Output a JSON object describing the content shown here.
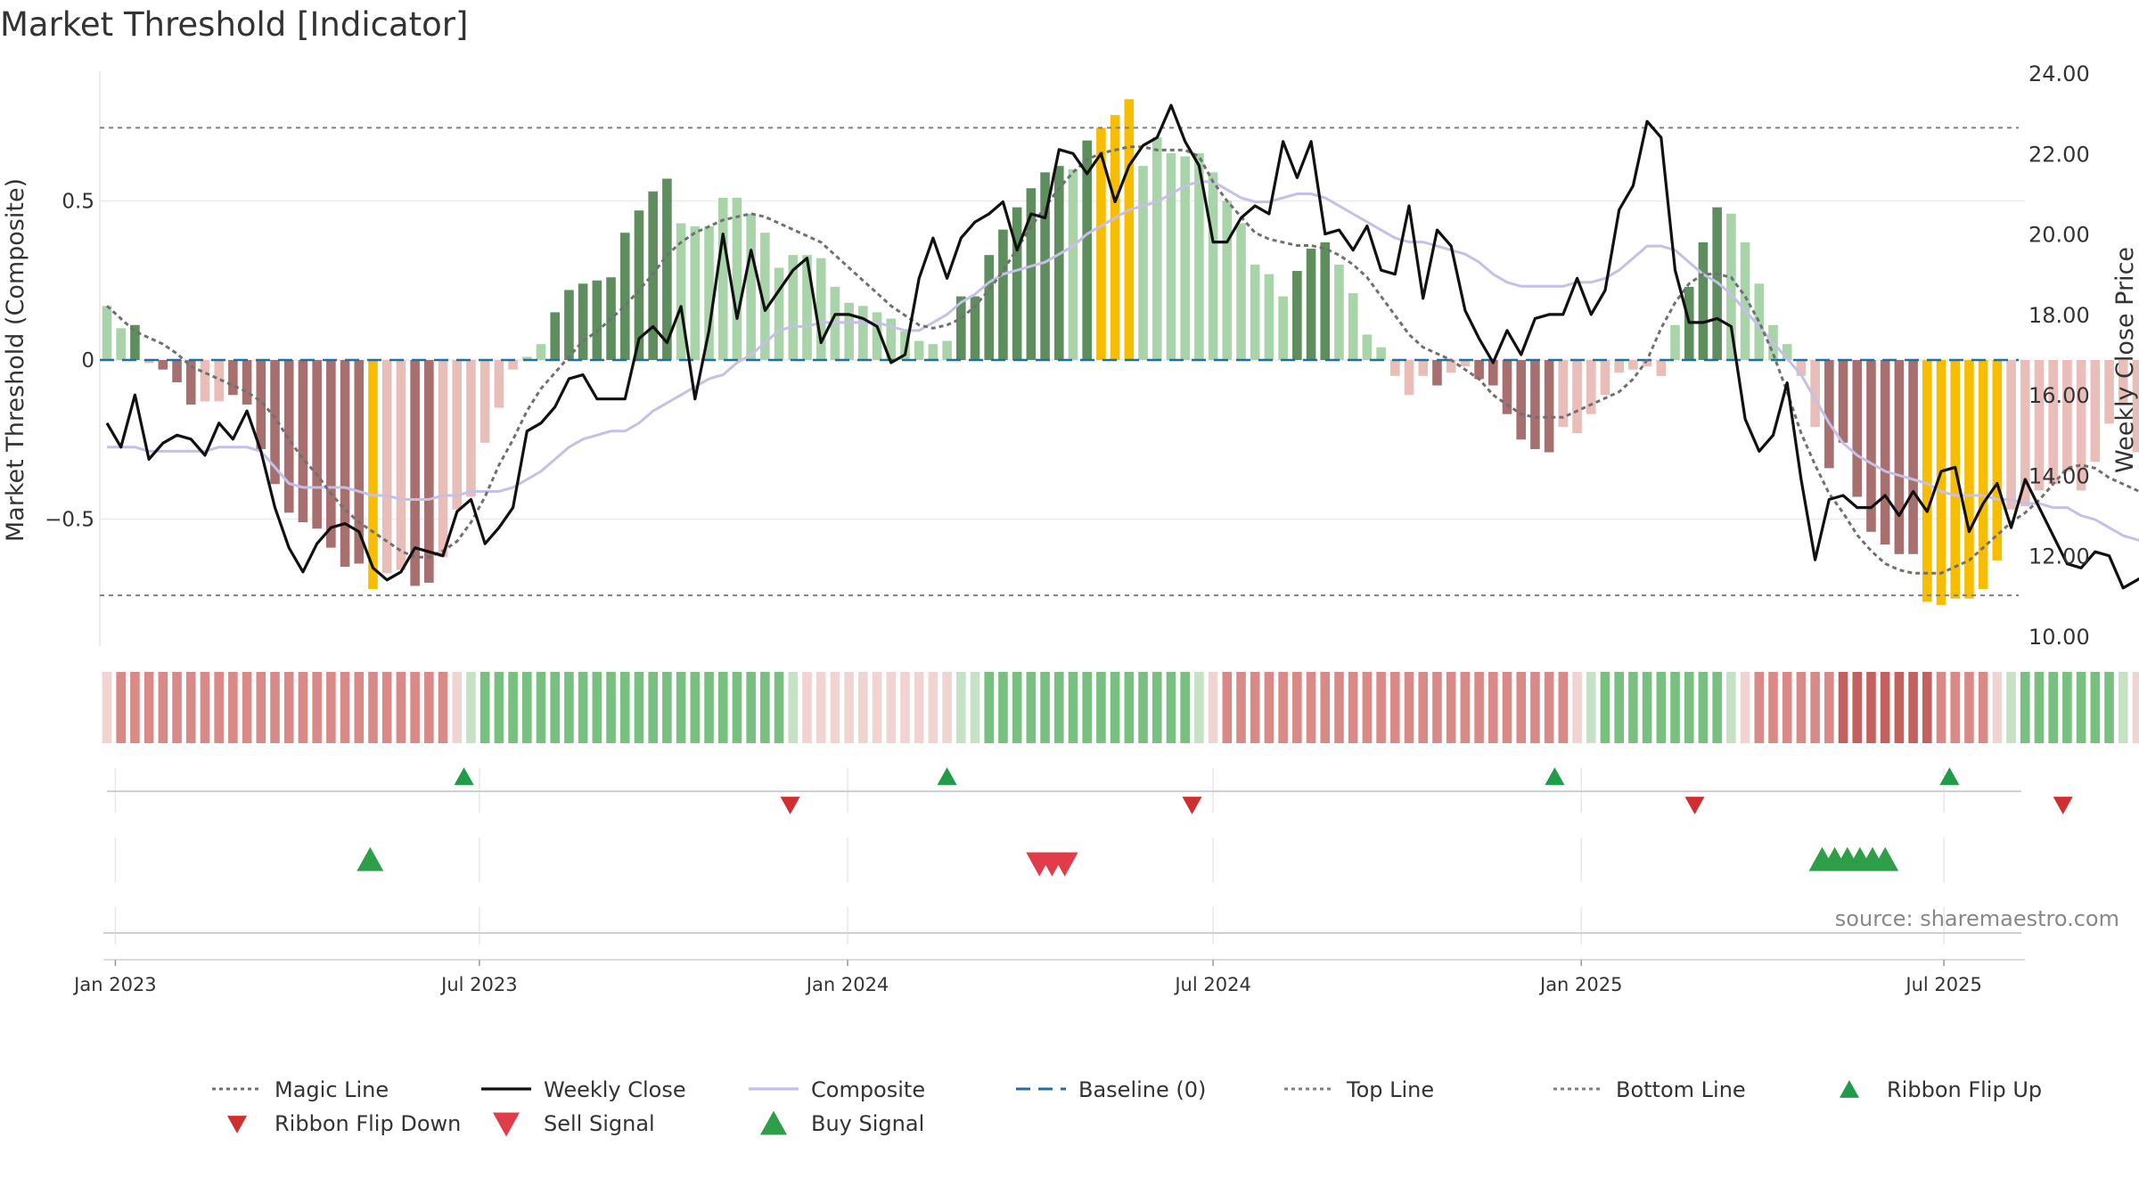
{
  "title": "Market Threshold [Indicator]",
  "source": "source: sharemaestro.com",
  "colors": {
    "strong_green": "#5e8e5e",
    "light_green": "#a9d4a9",
    "strong_red": "#a86f6f",
    "light_red": "#e9bdb8",
    "extreme": "#f7bd00",
    "magic_line": "#707070",
    "weekly_close": "#111111",
    "composite": "#c6bfe6",
    "baseline": "#1f6fa0",
    "threshold_line": "#808080",
    "flip_up": "#1e9c47",
    "flip_down": "#d02f2f",
    "sell": "#e23b4a",
    "buy": "#2e9e48"
  },
  "chart_data": {
    "type": "bar",
    "title": "Market Threshold [Indicator]",
    "ylabel": "Market Threshold (Composite)",
    "y2label": "Weekly Close Price",
    "ylim": [
      -0.9,
      0.92
    ],
    "y2lim": [
      10.0,
      24.0
    ],
    "yticks": [
      {
        "v": 0.5,
        "label": "0.5"
      },
      {
        "v": 0,
        "label": "0"
      },
      {
        "v": -0.5,
        "label": "−0.5"
      }
    ],
    "y2ticks": [
      "10.00",
      "12.00",
      "14.00",
      "16.00",
      "18.00",
      "20.00",
      "22.00",
      "24.00"
    ],
    "xticks": [
      {
        "week": 0.6,
        "label": "Jan 2023"
      },
      {
        "week": 26.6,
        "label": "Jul 2023"
      },
      {
        "week": 52.9,
        "label": "Jan 2024"
      },
      {
        "week": 79.0,
        "label": "Jul 2024"
      },
      {
        "week": 105.3,
        "label": "Jan 2025"
      },
      {
        "week": 131.2,
        "label": "Jul 2025"
      }
    ],
    "top_line": 0.73,
    "bottom_line": -0.74,
    "bars": [
      0.17,
      0.1,
      0.11,
      -0.01,
      -0.03,
      -0.07,
      -0.14,
      -0.13,
      -0.13,
      -0.11,
      -0.14,
      -0.28,
      -0.39,
      -0.48,
      -0.51,
      -0.53,
      -0.59,
      -0.65,
      -0.64,
      -0.72,
      -0.67,
      -0.66,
      -0.71,
      -0.7,
      -0.62,
      -0.47,
      -0.43,
      -0.26,
      -0.15,
      -0.03,
      0.01,
      0.05,
      0.15,
      0.22,
      0.24,
      0.25,
      0.26,
      0.4,
      0.47,
      0.53,
      0.57,
      0.43,
      0.42,
      0.42,
      0.51,
      0.51,
      0.46,
      0.4,
      0.29,
      0.33,
      0.33,
      0.32,
      0.23,
      0.18,
      0.17,
      0.15,
      0.13,
      0.09,
      0.06,
      0.05,
      0.06,
      0.2,
      0.2,
      0.33,
      0.41,
      0.48,
      0.54,
      0.59,
      0.61,
      0.6,
      0.69,
      0.73,
      0.77,
      0.82,
      0.61,
      0.7,
      0.65,
      0.64,
      0.65,
      0.59,
      0.5,
      0.43,
      0.3,
      0.27,
      0.2,
      0.28,
      0.35,
      0.37,
      0.3,
      0.21,
      0.08,
      0.04,
      -0.05,
      -0.11,
      -0.05,
      -0.08,
      -0.04,
      -0.02,
      -0.06,
      -0.08,
      -0.17,
      -0.25,
      -0.28,
      -0.29,
      -0.21,
      -0.23,
      -0.17,
      -0.11,
      -0.04,
      -0.03,
      -0.02,
      -0.05,
      0.11,
      0.23,
      0.37,
      0.48,
      0.46,
      0.37,
      0.24,
      0.11,
      0.05,
      -0.05,
      -0.21,
      -0.34,
      -0.26,
      -0.43,
      -0.54,
      -0.58,
      -0.61,
      -0.61,
      -0.76,
      -0.77,
      -0.75,
      -0.75,
      -0.72,
      -0.63,
      -0.47,
      -0.46,
      -0.41,
      -0.39,
      -0.35,
      -0.41,
      -0.32,
      -0.2,
      -0.14,
      -0.29,
      -0.29,
      -0.36,
      -0.44,
      -0.54,
      -0.55,
      -0.56,
      -0.63,
      -0.64
    ],
    "bar_colors": [
      "lg",
      "lg",
      "sg",
      "lr",
      "sr",
      "sr",
      "sr",
      "lr",
      "lr",
      "sr",
      "sr",
      "sr",
      "sr",
      "sr",
      "sr",
      "sr",
      "sr",
      "sr",
      "sr",
      "y",
      "lr",
      "lr",
      "sr",
      "sr",
      "lr",
      "lr",
      "lr",
      "lr",
      "lr",
      "lr",
      "lg",
      "lg",
      "sg",
      "sg",
      "sg",
      "sg",
      "sg",
      "sg",
      "sg",
      "sg",
      "sg",
      "lg",
      "lg",
      "lg",
      "lg",
      "lg",
      "lg",
      "lg",
      "lg",
      "lg",
      "lg",
      "lg",
      "lg",
      "lg",
      "lg",
      "lg",
      "lg",
      "lg",
      "lg",
      "lg",
      "lg",
      "sg",
      "sg",
      "sg",
      "sg",
      "sg",
      "sg",
      "sg",
      "sg",
      "lg",
      "sg",
      "y",
      "y",
      "y",
      "lg",
      "lg",
      "lg",
      "lg",
      "lg",
      "lg",
      "lg",
      "lg",
      "lg",
      "lg",
      "lg",
      "sg",
      "sg",
      "sg",
      "lg",
      "lg",
      "lg",
      "lg",
      "lr",
      "lr",
      "lr",
      "sr",
      "lr",
      "lr",
      "sr",
      "sr",
      "sr",
      "sr",
      "sr",
      "sr",
      "lr",
      "lr",
      "lr",
      "lr",
      "lr",
      "lr",
      "lr",
      "lr",
      "lg",
      "sg",
      "sg",
      "sg",
      "lg",
      "lg",
      "lg",
      "lg",
      "lg",
      "lr",
      "lr",
      "sr",
      "sr",
      "sr",
      "sr",
      "sr",
      "sr",
      "sr",
      "y",
      "y",
      "y",
      "y",
      "y",
      "y",
      "lr",
      "lr",
      "lr",
      "lr",
      "lr",
      "lr",
      "lr",
      "lr",
      "lr",
      "lr",
      "lr",
      "sr",
      "sr",
      "sr",
      "sr",
      "sr",
      "sr",
      "sr",
      "sr"
    ],
    "weekly_close": [
      15.3,
      14.7,
      16.0,
      14.4,
      14.8,
      15.0,
      14.9,
      14.5,
      15.3,
      14.9,
      15.6,
      14.6,
      13.2,
      12.2,
      11.6,
      12.3,
      12.7,
      12.8,
      12.6,
      11.7,
      11.4,
      11.6,
      12.2,
      12.1,
      12.0,
      13.1,
      13.4,
      12.3,
      12.7,
      13.2,
      15.1,
      15.3,
      15.7,
      16.4,
      16.5,
      15.9,
      15.9,
      15.9,
      17.4,
      17.7,
      17.3,
      18.2,
      15.9,
      17.6,
      20.0,
      17.9,
      19.6,
      18.1,
      18.6,
      19.1,
      19.4,
      17.3,
      18.0,
      18.0,
      17.9,
      17.7,
      16.8,
      17.0,
      18.9,
      19.9,
      18.9,
      19.9,
      20.3,
      20.5,
      20.8,
      19.6,
      20.5,
      20.4,
      22.1,
      22.0,
      21.5,
      22.0,
      20.8,
      21.7,
      22.2,
      22.4,
      23.2,
      22.3,
      21.7,
      19.8,
      19.8,
      20.4,
      20.7,
      20.5,
      22.3,
      21.4,
      22.3,
      20.0,
      20.1,
      19.6,
      20.2,
      19.1,
      19.0,
      20.7,
      18.4,
      20.1,
      19.7,
      18.1,
      17.4,
      16.8,
      17.6,
      17.0,
      17.9,
      18.0,
      18.0,
      18.9,
      18.0,
      18.6,
      20.6,
      21.2,
      22.8,
      22.4,
      19.1,
      17.8,
      17.8,
      17.9,
      17.7,
      15.4,
      14.6,
      15.0,
      16.3,
      13.9,
      11.9,
      13.4,
      13.5,
      13.2,
      13.2,
      13.5,
      13.0,
      13.6,
      13.1,
      14.1,
      14.2,
      12.6,
      13.3,
      13.8,
      12.7,
      13.9,
      13.2,
      12.5,
      11.8,
      11.7,
      12.1,
      12.0,
      11.2,
      11.4,
      11.6
    ],
    "composite": [
      14.7,
      14.7,
      14.7,
      14.6,
      14.6,
      14.6,
      14.6,
      14.6,
      14.7,
      14.7,
      14.7,
      14.6,
      14.2,
      13.8,
      13.7,
      13.7,
      13.7,
      13.7,
      13.6,
      13.5,
      13.5,
      13.4,
      13.4,
      13.4,
      13.5,
      13.5,
      13.6,
      13.6,
      13.6,
      13.7,
      13.9,
      14.1,
      14.4,
      14.7,
      14.9,
      15.0,
      15.1,
      15.1,
      15.3,
      15.6,
      15.8,
      16.0,
      16.2,
      16.4,
      16.5,
      16.8,
      17.0,
      17.3,
      17.6,
      17.7,
      17.7,
      17.8,
      17.8,
      17.8,
      17.8,
      17.8,
      17.7,
      17.6,
      17.6,
      17.8,
      18.0,
      18.3,
      18.5,
      18.8,
      19.0,
      19.1,
      19.2,
      19.3,
      19.5,
      19.7,
      20.0,
      20.2,
      20.4,
      20.6,
      20.7,
      20.8,
      21.0,
      21.2,
      21.3,
      21.3,
      21.1,
      20.9,
      20.8,
      20.8,
      20.9,
      21.0,
      21.0,
      20.9,
      20.7,
      20.5,
      20.3,
      20.1,
      19.9,
      19.8,
      19.8,
      19.7,
      19.6,
      19.5,
      19.3,
      19.0,
      18.8,
      18.7,
      18.7,
      18.7,
      18.7,
      18.8,
      18.8,
      18.9,
      19.1,
      19.4,
      19.7,
      19.7,
      19.6,
      19.3,
      19.0,
      18.8,
      18.5,
      18.1,
      17.7,
      17.3,
      16.9,
      16.5,
      15.9,
      15.3,
      14.8,
      14.5,
      14.3,
      14.1,
      14.0,
      13.9,
      13.8,
      13.6,
      13.5,
      13.5,
      13.5,
      13.4,
      13.4,
      13.3,
      13.3,
      13.2,
      13.2,
      13.0,
      12.9,
      12.7,
      12.5,
      12.4,
      12.3,
      12.1
    ],
    "magic_line": [
      0.17,
      0.13,
      0.09,
      0.07,
      0.05,
      0.02,
      -0.02,
      -0.04,
      -0.06,
      -0.08,
      -0.1,
      -0.13,
      -0.18,
      -0.25,
      -0.31,
      -0.36,
      -0.42,
      -0.47,
      -0.51,
      -0.54,
      -0.57,
      -0.6,
      -0.62,
      -0.62,
      -0.6,
      -0.57,
      -0.51,
      -0.43,
      -0.33,
      -0.25,
      -0.16,
      -0.09,
      -0.04,
      0.01,
      0.06,
      0.09,
      0.13,
      0.17,
      0.22,
      0.27,
      0.33,
      0.37,
      0.4,
      0.42,
      0.44,
      0.45,
      0.46,
      0.45,
      0.43,
      0.41,
      0.39,
      0.37,
      0.33,
      0.29,
      0.25,
      0.21,
      0.17,
      0.14,
      0.11,
      0.1,
      0.11,
      0.13,
      0.17,
      0.22,
      0.28,
      0.35,
      0.42,
      0.48,
      0.54,
      0.59,
      0.63,
      0.65,
      0.66,
      0.67,
      0.67,
      0.66,
      0.66,
      0.66,
      0.64,
      0.56,
      0.5,
      0.45,
      0.4,
      0.38,
      0.37,
      0.36,
      0.36,
      0.35,
      0.33,
      0.3,
      0.26,
      0.2,
      0.14,
      0.08,
      0.04,
      0.02,
      0.0,
      -0.03,
      -0.06,
      -0.11,
      -0.14,
      -0.17,
      -0.18,
      -0.18,
      -0.18,
      -0.16,
      -0.14,
      -0.12,
      -0.1,
      -0.06,
      0.0,
      0.1,
      0.18,
      0.24,
      0.27,
      0.27,
      0.26,
      0.2,
      0.12,
      0.02,
      -0.1,
      -0.23,
      -0.33,
      -0.42,
      -0.48,
      -0.55,
      -0.6,
      -0.64,
      -0.66,
      -0.67,
      -0.67,
      -0.67,
      -0.65,
      -0.63,
      -0.59,
      -0.55,
      -0.51,
      -0.48,
      -0.44,
      -0.39,
      -0.34,
      -0.33,
      -0.34,
      -0.37,
      -0.39,
      -0.41,
      -0.44,
      -0.47,
      -0.5,
      -0.53
    ],
    "ribbon": [
      "rl",
      "rm",
      "rm",
      "rm",
      "rm",
      "rm",
      "rm",
      "rm",
      "rm",
      "rm",
      "rm",
      "rm",
      "rm",
      "rm",
      "rm",
      "rm",
      "rm",
      "rm",
      "rm",
      "rm",
      "rm",
      "rm",
      "rm",
      "rm",
      "rm",
      "rl",
      "gl",
      "gm",
      "gm",
      "gm",
      "gm",
      "gm",
      "gm",
      "gm",
      "gm",
      "gm",
      "gm",
      "gm",
      "gm",
      "gm",
      "gm",
      "gm",
      "gm",
      "gm",
      "gm",
      "gm",
      "gm",
      "gm",
      "gm",
      "gl",
      "rl",
      "rl",
      "rl",
      "rl",
      "rl",
      "rl",
      "rl",
      "rl",
      "rl",
      "rl",
      "rl",
      "gl",
      "gl",
      "gm",
      "gm",
      "gm",
      "gm",
      "gm",
      "gm",
      "gm",
      "gm",
      "gm",
      "gm",
      "gm",
      "gm",
      "gm",
      "gm",
      "gm",
      "gl",
      "rl",
      "rm",
      "rm",
      "rm",
      "rm",
      "rm",
      "rm",
      "rm",
      "rm",
      "rm",
      "rm",
      "rm",
      "rm",
      "rm",
      "rm",
      "rm",
      "rm",
      "rm",
      "rm",
      "rm",
      "rm",
      "rm",
      "rm",
      "rm",
      "rm",
      "rm",
      "rl",
      "gl",
      "gm",
      "gm",
      "gm",
      "gm",
      "gm",
      "gm",
      "gm",
      "gm",
      "gm",
      "gl",
      "rl",
      "rm",
      "rm",
      "rm",
      "rm",
      "rm",
      "rm",
      "rs",
      "rs",
      "rs",
      "rs",
      "rs",
      "rs",
      "rs",
      "rm",
      "rm",
      "rm",
      "rm",
      "rl",
      "gl",
      "gm",
      "gm",
      "gm",
      "gm",
      "gm",
      "gm",
      "gm",
      "gl",
      "rl",
      "rl",
      "rl",
      "rl"
    ],
    "ribbon_flip_up_weeks": [
      25.5,
      60.0,
      103.4,
      131.6
    ],
    "ribbon_flip_down_weeks": [
      48.8,
      77.5,
      113.4,
      139.7
    ],
    "buy_signal_weeks": [
      18.8,
      122.5,
      123.4,
      124.3,
      125.2,
      126.1,
      127.0
    ],
    "sell_signal_weeks": [
      66.6,
      67.5,
      68.4
    ],
    "legend": [
      {
        "label": "Magic Line",
        "kind": "dotted",
        "color": "#707070"
      },
      {
        "label": "Weekly Close",
        "kind": "solid",
        "color": "#111111"
      },
      {
        "label": "Composite",
        "kind": "solid",
        "color": "#c6bfe6"
      },
      {
        "label": "Baseline (0)",
        "kind": "dashed",
        "color": "#1f6fa0"
      },
      {
        "label": "Top Line",
        "kind": "dotted",
        "color": "#808080"
      },
      {
        "label": "Bottom Line",
        "kind": "dotted",
        "color": "#808080"
      },
      {
        "label": "Ribbon Flip Up",
        "kind": "tri-up-small",
        "color": "#1e9c47"
      },
      {
        "label": "Ribbon Flip Down",
        "kind": "tri-down-small",
        "color": "#d02f2f"
      },
      {
        "label": "Sell Signal",
        "kind": "tri-down",
        "color": "#e23b4a"
      },
      {
        "label": "Buy Signal",
        "kind": "tri-up",
        "color": "#2e9e48"
      }
    ]
  }
}
